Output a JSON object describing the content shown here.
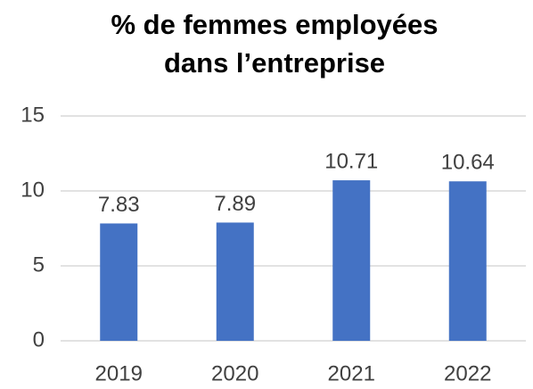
{
  "chart_data": {
    "type": "bar",
    "title": [
      "% de femmes employées",
      "dans l’entreprise"
    ],
    "categories": [
      "2019",
      "2020",
      "2021",
      "2022"
    ],
    "values": [
      7.83,
      7.89,
      10.71,
      10.64
    ],
    "color": "#4472c4",
    "ylim": [
      0,
      15
    ],
    "yticks": [
      0,
      5,
      10,
      15
    ],
    "grid": true,
    "data_labels": true
  }
}
